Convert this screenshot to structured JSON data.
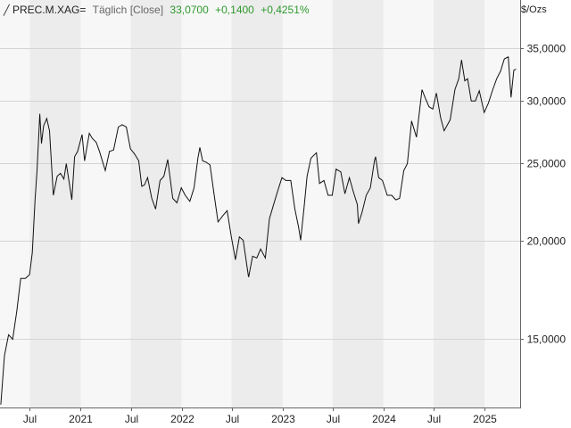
{
  "header": {
    "symbol": "PREC.M.XAG=",
    "mode": "Täglich [Close]",
    "last": "33,0700",
    "change": "+0,1400",
    "change_pct": "+0,4251%"
  },
  "colors": {
    "line": "#111111",
    "positive": "#2e9a2e",
    "band": "#ececec",
    "plot_bg": "#f7f7f7",
    "grid": "#d4d4d4"
  },
  "chart_data": {
    "type": "line",
    "ylabel": "$/Ozs",
    "yscale": "log",
    "ylim": [
      12.3,
      38.0
    ],
    "xlim": [
      "2020-03-15",
      "2025-05-10"
    ],
    "grid": true,
    "y_ticks": [
      {
        "value": 15,
        "label": "15,0000"
      },
      {
        "value": 20,
        "label": "20,0000"
      },
      {
        "value": 25,
        "label": "25,0000"
      },
      {
        "value": 30,
        "label": "30,0000"
      },
      {
        "value": 35,
        "label": "35,0000"
      }
    ],
    "x_ticks": [
      {
        "date": "2020-07-01",
        "label": "Jul"
      },
      {
        "date": "2021-01-01",
        "label": "2021"
      },
      {
        "date": "2021-07-01",
        "label": "Jul"
      },
      {
        "date": "2022-01-01",
        "label": "2022"
      },
      {
        "date": "2022-07-01",
        "label": "Jul"
      },
      {
        "date": "2023-01-01",
        "label": "2023"
      },
      {
        "date": "2023-07-01",
        "label": "Jul"
      },
      {
        "date": "2024-01-01",
        "label": "2024"
      },
      {
        "date": "2024-07-01",
        "label": "Jul"
      },
      {
        "date": "2025-01-01",
        "label": "2025"
      }
    ],
    "series": [
      {
        "name": "",
        "x": [
          "2020-03-18",
          "2020-03-31",
          "2020-04-15",
          "2020-04-30",
          "2020-05-15",
          "2020-05-29",
          "2020-06-15",
          "2020-06-30",
          "2020-07-10",
          "2020-07-20",
          "2020-07-27",
          "2020-08-06",
          "2020-08-12",
          "2020-08-20",
          "2020-08-31",
          "2020-09-10",
          "2020-09-24",
          "2020-10-08",
          "2020-10-20",
          "2020-11-01",
          "2020-11-10",
          "2020-11-30",
          "2020-12-10",
          "2020-12-21",
          "2021-01-06",
          "2021-01-15",
          "2021-02-01",
          "2021-02-12",
          "2021-02-26",
          "2021-03-10",
          "2021-03-31",
          "2021-04-15",
          "2021-04-30",
          "2021-05-17",
          "2021-05-31",
          "2021-06-15",
          "2021-06-30",
          "2021-07-15",
          "2021-07-30",
          "2021-08-10",
          "2021-08-20",
          "2021-08-31",
          "2021-09-15",
          "2021-09-29",
          "2021-10-15",
          "2021-10-29",
          "2021-11-12",
          "2021-11-30",
          "2021-12-15",
          "2021-12-31",
          "2022-01-14",
          "2022-01-31",
          "2022-02-15",
          "2022-03-01",
          "2022-03-08",
          "2022-03-18",
          "2022-03-31",
          "2022-04-14",
          "2022-04-29",
          "2022-05-13",
          "2022-05-31",
          "2022-06-15",
          "2022-06-30",
          "2022-07-15",
          "2022-07-29",
          "2022-08-12",
          "2022-08-31",
          "2022-09-01",
          "2022-09-15",
          "2022-09-30",
          "2022-10-14",
          "2022-10-31",
          "2022-11-15",
          "2022-11-30",
          "2022-12-15",
          "2022-12-30",
          "2023-01-13",
          "2023-01-31",
          "2023-02-15",
          "2023-02-28",
          "2023-03-08",
          "2023-03-20",
          "2023-03-31",
          "2023-04-14",
          "2023-05-04",
          "2023-05-15",
          "2023-05-31",
          "2023-06-15",
          "2023-06-30",
          "2023-07-14",
          "2023-07-31",
          "2023-08-15",
          "2023-08-31",
          "2023-09-15",
          "2023-09-29",
          "2023-10-03",
          "2023-10-16",
          "2023-10-31",
          "2023-11-15",
          "2023-11-30",
          "2023-12-04",
          "2023-12-15",
          "2023-12-29",
          "2024-01-15",
          "2024-01-31",
          "2024-02-15",
          "2024-02-29",
          "2024-03-15",
          "2024-03-28",
          "2024-04-12",
          "2024-04-30",
          "2024-05-20",
          "2024-05-31",
          "2024-06-14",
          "2024-06-28",
          "2024-07-11",
          "2024-07-26",
          "2024-08-08",
          "2024-08-30",
          "2024-09-16",
          "2024-09-30",
          "2024-10-10",
          "2024-10-22",
          "2024-11-01",
          "2024-11-14",
          "2024-11-29",
          "2024-12-13",
          "2024-12-31",
          "2025-01-15",
          "2025-01-31",
          "2025-02-14",
          "2025-02-28",
          "2025-03-14",
          "2025-03-28",
          "2025-04-07",
          "2025-04-17",
          "2025-04-25"
        ],
        "y": [
          12.4,
          14.3,
          15.2,
          15.0,
          16.3,
          17.9,
          17.9,
          18.1,
          19.3,
          22.5,
          24.5,
          28.9,
          26.5,
          27.9,
          28.5,
          27.5,
          22.8,
          24.1,
          24.3,
          23.9,
          25.0,
          22.5,
          25.5,
          25.9,
          27.2,
          25.2,
          27.3,
          26.9,
          26.6,
          25.9,
          24.5,
          25.9,
          26.0,
          27.8,
          28.0,
          27.8,
          26.1,
          25.7,
          25.2,
          23.4,
          23.5,
          24.0,
          22.6,
          21.9,
          23.8,
          24.1,
          25.3,
          22.6,
          22.3,
          23.3,
          22.8,
          22.4,
          23.3,
          25.4,
          26.2,
          25.2,
          25.1,
          24.9,
          22.8,
          21.1,
          21.5,
          21.8,
          20.2,
          18.9,
          20.2,
          20.0,
          18.0,
          18.0,
          19.1,
          19.0,
          19.5,
          19.0,
          21.3,
          22.2,
          23.1,
          24.0,
          23.8,
          23.8,
          21.9,
          20.8,
          20.0,
          22.0,
          24.1,
          25.4,
          25.8,
          23.6,
          23.8,
          22.8,
          22.8,
          24.6,
          24.4,
          22.9,
          24.0,
          23.0,
          22.2,
          21.0,
          21.7,
          22.8,
          23.3,
          25.2,
          25.5,
          24.0,
          23.8,
          22.8,
          22.8,
          22.5,
          22.6,
          24.5,
          25.0,
          28.3,
          27.0,
          31.0,
          30.3,
          29.5,
          29.3,
          30.7,
          28.6,
          27.5,
          28.4,
          31.0,
          32.0,
          33.8,
          31.8,
          32.0,
          30.0,
          30.0,
          30.9,
          29.0,
          29.8,
          31.0,
          32.0,
          32.7,
          33.9,
          34.1,
          30.3,
          32.8,
          32.9
        ]
      }
    ]
  }
}
